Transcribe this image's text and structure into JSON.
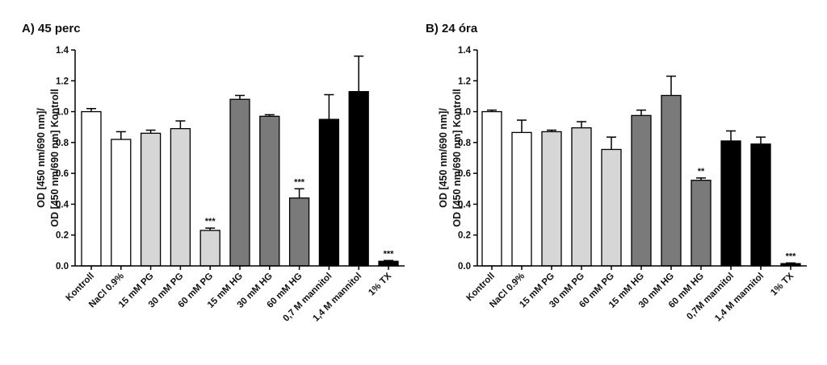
{
  "chart_data": [
    {
      "type": "bar",
      "title": "A) 45 perc",
      "ylabel_lines": [
        "OD [450 nm/690 nm]/",
        "OD [450 nm/690 nm] Kontroll"
      ],
      "ylim": [
        0,
        1.4
      ],
      "yticks": [
        "0.0",
        "0.2",
        "0.4",
        "0.6",
        "0.8",
        "1.0",
        "1.2",
        "1.4"
      ],
      "grid": false,
      "categories": [
        "Kontroll",
        "NaCl 0.9%",
        "15 mM PG",
        "30 mM PG",
        "60 mM PG",
        "15 mM HG",
        "30 mM HG",
        "60 mM HG",
        "0,7 M mannitol",
        "1,4 M mannitol",
        "1% TX"
      ],
      "values": [
        1.0,
        0.82,
        0.86,
        0.89,
        0.23,
        1.08,
        0.97,
        0.44,
        0.95,
        1.13,
        0.03
      ],
      "errors": [
        0.02,
        0.05,
        0.02,
        0.05,
        0.015,
        0.025,
        0.01,
        0.06,
        0.16,
        0.23,
        0.005
      ],
      "significance": [
        "",
        "",
        "",
        "",
        "***",
        "",
        "",
        "***",
        "",
        "",
        "***"
      ],
      "colors": [
        "#ffffff",
        "#ffffff",
        "#d6d6d6",
        "#d6d6d6",
        "#d6d6d6",
        "#7a7a7a",
        "#7a7a7a",
        "#7a7a7a",
        "#000000",
        "#000000",
        "#000000"
      ]
    },
    {
      "type": "bar",
      "title": "B) 24 óra",
      "ylabel_lines": [
        "OD [450 nm/690 nm]/",
        "OD [450 nm/690 nm] Kontroll"
      ],
      "ylim": [
        0,
        1.4
      ],
      "yticks": [
        "0.0",
        "0.2",
        "0.4",
        "0.6",
        "0.8",
        "1.0",
        "1.2",
        "1.4"
      ],
      "grid": false,
      "categories": [
        "Kontroll",
        "NaCl 0.9%",
        "15 mM PG",
        "30 mM PG",
        "60 mM PG",
        "15 mM HG",
        "30 mM HG",
        "60 mM HG",
        "0,7M mannitol",
        "1,4 M mannitol",
        "1% TX"
      ],
      "values": [
        1.0,
        0.865,
        0.87,
        0.895,
        0.755,
        0.975,
        1.105,
        0.555,
        0.81,
        0.79,
        0.015
      ],
      "errors": [
        0.01,
        0.08,
        0.01,
        0.04,
        0.08,
        0.035,
        0.125,
        0.015,
        0.065,
        0.045,
        0.004
      ],
      "significance": [
        "",
        "",
        "",
        "",
        "",
        "",
        "",
        "**",
        "",
        "",
        "***"
      ],
      "colors": [
        "#ffffff",
        "#ffffff",
        "#d6d6d6",
        "#d6d6d6",
        "#d6d6d6",
        "#7a7a7a",
        "#7a7a7a",
        "#7a7a7a",
        "#000000",
        "#000000",
        "#000000"
      ]
    }
  ]
}
